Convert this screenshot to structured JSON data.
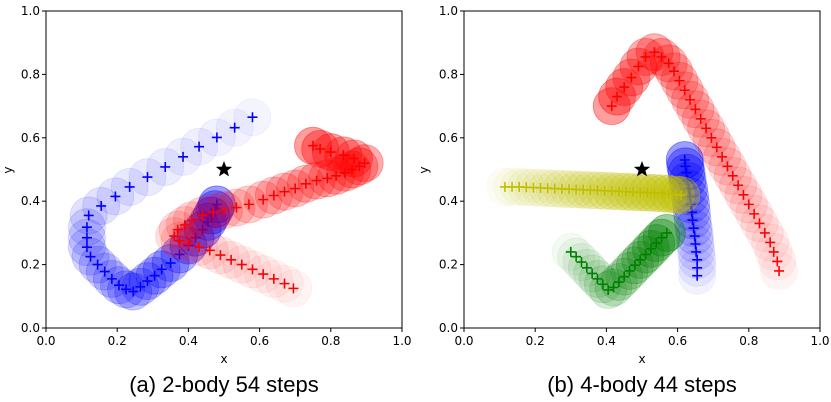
{
  "chart_data": [
    {
      "type": "scatter",
      "caption": "(a) 2-body 54 steps",
      "xlabel": "x",
      "ylabel": "y",
      "xlim": [
        0.0,
        1.0
      ],
      "ylim": [
        0.0,
        1.0
      ],
      "xticks": [
        "0.0",
        "0.2",
        "0.4",
        "0.6",
        "0.8",
        "1.0"
      ],
      "yticks": [
        "0.0",
        "0.2",
        "0.4",
        "0.6",
        "0.8",
        "1.0"
      ],
      "goal": {
        "x": 0.5,
        "y": 0.5,
        "marker": "star",
        "color": "#000000"
      },
      "circle_radius": 0.055,
      "series": [
        {
          "name": "body-blue",
          "color": "#0000ff",
          "points": [
            [
              0.58,
              0.665
            ],
            [
              0.53,
              0.632
            ],
            [
              0.48,
              0.601
            ],
            [
              0.43,
              0.572
            ],
            [
              0.385,
              0.54
            ],
            [
              0.335,
              0.508
            ],
            [
              0.285,
              0.476
            ],
            [
              0.235,
              0.445
            ],
            [
              0.195,
              0.415
            ],
            [
              0.155,
              0.385
            ],
            [
              0.12,
              0.355
            ],
            [
              0.115,
              0.318
            ],
            [
              0.115,
              0.285
            ],
            [
              0.115,
              0.255
            ],
            [
              0.125,
              0.225
            ],
            [
              0.145,
              0.2
            ],
            [
              0.165,
              0.178
            ],
            [
              0.185,
              0.155
            ],
            [
              0.205,
              0.135
            ],
            [
              0.225,
              0.122
            ],
            [
              0.245,
              0.115
            ],
            [
              0.265,
              0.13
            ],
            [
              0.285,
              0.148
            ],
            [
              0.305,
              0.165
            ],
            [
              0.325,
              0.185
            ],
            [
              0.35,
              0.205
            ],
            [
              0.375,
              0.232
            ],
            [
              0.4,
              0.26
            ],
            [
              0.42,
              0.285
            ],
            [
              0.44,
              0.31
            ],
            [
              0.455,
              0.335
            ],
            [
              0.465,
              0.355
            ],
            [
              0.475,
              0.375
            ],
            [
              0.48,
              0.39
            ]
          ]
        },
        {
          "name": "body-red",
          "color": "#ff0000",
          "points": [
            [
              0.695,
              0.125
            ],
            [
              0.67,
              0.14
            ],
            [
              0.64,
              0.155
            ],
            [
              0.61,
              0.17
            ],
            [
              0.58,
              0.185
            ],
            [
              0.55,
              0.2
            ],
            [
              0.52,
              0.215
            ],
            [
              0.49,
              0.23
            ],
            [
              0.46,
              0.245
            ],
            [
              0.43,
              0.255
            ],
            [
              0.4,
              0.265
            ],
            [
              0.375,
              0.275
            ],
            [
              0.36,
              0.29
            ],
            [
              0.37,
              0.31
            ],
            [
              0.39,
              0.325
            ],
            [
              0.41,
              0.34
            ],
            [
              0.44,
              0.355
            ],
            [
              0.47,
              0.365
            ],
            [
              0.5,
              0.372
            ],
            [
              0.535,
              0.38
            ],
            [
              0.57,
              0.39
            ],
            [
              0.61,
              0.405
            ],
            [
              0.64,
              0.418
            ],
            [
              0.67,
              0.43
            ],
            [
              0.7,
              0.44
            ],
            [
              0.73,
              0.455
            ],
            [
              0.76,
              0.465
            ],
            [
              0.79,
              0.472
            ],
            [
              0.815,
              0.48
            ],
            [
              0.84,
              0.49
            ],
            [
              0.86,
              0.5
            ],
            [
              0.88,
              0.51
            ],
            [
              0.895,
              0.52
            ],
            [
              0.865,
              0.535
            ],
            [
              0.835,
              0.545
            ],
            [
              0.8,
              0.555
            ],
            [
              0.77,
              0.565
            ],
            [
              0.75,
              0.575
            ]
          ]
        }
      ]
    },
    {
      "type": "scatter",
      "caption": "(b) 4-body 44 steps",
      "xlabel": "x",
      "ylabel": "y",
      "xlim": [
        0.0,
        1.0
      ],
      "ylim": [
        0.0,
        1.0
      ],
      "xticks": [
        "0.0",
        "0.2",
        "0.4",
        "0.6",
        "0.8",
        "1.0"
      ],
      "yticks": [
        "0.0",
        "0.2",
        "0.4",
        "0.6",
        "0.8",
        "1.0"
      ],
      "goal": {
        "x": 0.5,
        "y": 0.5,
        "marker": "star",
        "color": "#000000"
      },
      "circle_radius": 0.055,
      "series": [
        {
          "name": "body-red",
          "color": "#ff0000",
          "points": [
            [
              0.885,
              0.18
            ],
            [
              0.88,
              0.21
            ],
            [
              0.87,
              0.24
            ],
            [
              0.86,
              0.27
            ],
            [
              0.845,
              0.3
            ],
            [
              0.83,
              0.33
            ],
            [
              0.815,
              0.36
            ],
            [
              0.8,
              0.39
            ],
            [
              0.785,
              0.42
            ],
            [
              0.77,
              0.45
            ],
            [
              0.755,
              0.48
            ],
            [
              0.74,
              0.51
            ],
            [
              0.725,
              0.54
            ],
            [
              0.71,
              0.57
            ],
            [
              0.695,
              0.6
            ],
            [
              0.68,
              0.63
            ],
            [
              0.665,
              0.66
            ],
            [
              0.65,
              0.69
            ],
            [
              0.635,
              0.72
            ],
            [
              0.62,
              0.75
            ],
            [
              0.605,
              0.78
            ],
            [
              0.59,
              0.81
            ],
            [
              0.575,
              0.835
            ],
            [
              0.555,
              0.855
            ],
            [
              0.535,
              0.87
            ],
            [
              0.51,
              0.855
            ],
            [
              0.49,
              0.825
            ],
            [
              0.47,
              0.79
            ],
            [
              0.45,
              0.76
            ],
            [
              0.43,
              0.73
            ],
            [
              0.415,
              0.7
            ]
          ]
        },
        {
          "name": "body-blue",
          "color": "#0000ff",
          "points": [
            [
              0.655,
              0.165
            ],
            [
              0.655,
              0.19
            ],
            [
              0.655,
              0.215
            ],
            [
              0.652,
              0.24
            ],
            [
              0.65,
              0.265
            ],
            [
              0.648,
              0.29
            ],
            [
              0.645,
              0.315
            ],
            [
              0.642,
              0.34
            ],
            [
              0.64,
              0.365
            ],
            [
              0.638,
              0.39
            ],
            [
              0.635,
              0.415
            ],
            [
              0.632,
              0.44
            ],
            [
              0.628,
              0.465
            ],
            [
              0.625,
              0.49
            ],
            [
              0.622,
              0.51
            ],
            [
              0.62,
              0.53
            ]
          ]
        },
        {
          "name": "body-green",
          "color": "#008000",
          "points": [
            [
              0.3,
              0.24
            ],
            [
              0.315,
              0.225
            ],
            [
              0.33,
              0.208
            ],
            [
              0.345,
              0.19
            ],
            [
              0.36,
              0.172
            ],
            [
              0.375,
              0.155
            ],
            [
              0.39,
              0.138
            ],
            [
              0.405,
              0.12
            ],
            [
              0.42,
              0.128
            ],
            [
              0.435,
              0.145
            ],
            [
              0.45,
              0.162
            ],
            [
              0.465,
              0.18
            ],
            [
              0.48,
              0.198
            ],
            [
              0.495,
              0.215
            ],
            [
              0.51,
              0.232
            ],
            [
              0.525,
              0.25
            ],
            [
              0.54,
              0.268
            ],
            [
              0.555,
              0.285
            ],
            [
              0.57,
              0.3
            ]
          ]
        },
        {
          "name": "body-yellow",
          "color": "#bfbf00",
          "points": [
            [
              0.115,
              0.445
            ],
            [
              0.135,
              0.445
            ],
            [
              0.155,
              0.445
            ],
            [
              0.175,
              0.444
            ],
            [
              0.195,
              0.443
            ],
            [
              0.215,
              0.442
            ],
            [
              0.235,
              0.441
            ],
            [
              0.255,
              0.44
            ],
            [
              0.275,
              0.439
            ],
            [
              0.295,
              0.438
            ],
            [
              0.315,
              0.437
            ],
            [
              0.335,
              0.436
            ],
            [
              0.355,
              0.435
            ],
            [
              0.375,
              0.434
            ],
            [
              0.395,
              0.433
            ],
            [
              0.415,
              0.432
            ],
            [
              0.435,
              0.431
            ],
            [
              0.455,
              0.43
            ],
            [
              0.475,
              0.429
            ],
            [
              0.495,
              0.428
            ],
            [
              0.515,
              0.427
            ],
            [
              0.535,
              0.426
            ],
            [
              0.555,
              0.425
            ],
            [
              0.575,
              0.423
            ],
            [
              0.595,
              0.421
            ],
            [
              0.61,
              0.419
            ]
          ]
        }
      ]
    }
  ]
}
